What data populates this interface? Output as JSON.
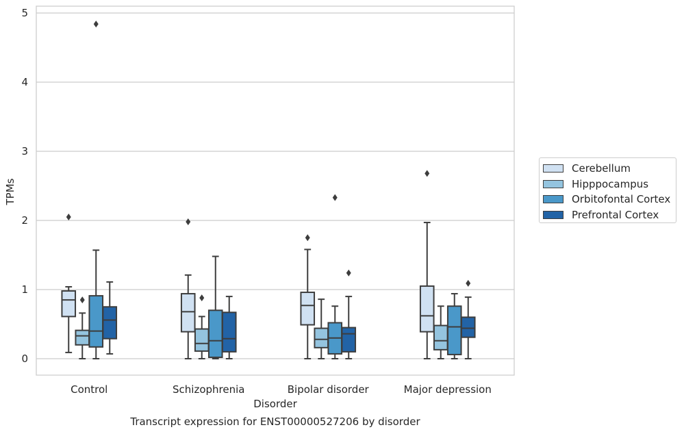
{
  "chart_data": {
    "type": "box",
    "title": "Transcript expression for ENST00000527206 by disorder",
    "xlabel": "Disorder",
    "ylabel": "TPMs",
    "ylim": [
      -0.23,
      5.1
    ],
    "yticks": [
      "0",
      "1",
      "2",
      "3",
      "4",
      "5"
    ],
    "grid": true,
    "legend_position": "right",
    "categories": [
      "Control",
      "Schizophrenia",
      "Bipolar disorder",
      "Major depression"
    ],
    "series": [
      {
        "name": "Cerebellum",
        "color": "#d0e1f2",
        "boxes": [
          {
            "whislo": 0.09,
            "q1": 0.61,
            "med": 0.85,
            "q3": 0.98,
            "whishi": 1.04,
            "fliers": [
              2.05
            ]
          },
          {
            "whislo": 0.0,
            "q1": 0.39,
            "med": 0.68,
            "q3": 0.94,
            "whishi": 1.21,
            "fliers": [
              1.98
            ]
          },
          {
            "whislo": 0.0,
            "q1": 0.49,
            "med": 0.77,
            "q3": 0.96,
            "whishi": 1.58,
            "fliers": [
              1.75
            ]
          },
          {
            "whislo": 0.0,
            "q1": 0.39,
            "med": 0.62,
            "q3": 1.05,
            "whishi": 1.97,
            "fliers": [
              2.68
            ]
          }
        ]
      },
      {
        "name": "Hipppocampus",
        "color": "#94c4df",
        "boxes": [
          {
            "whislo": 0.0,
            "q1": 0.2,
            "med": 0.33,
            "q3": 0.41,
            "whishi": 0.66,
            "fliers": [
              0.85
            ]
          },
          {
            "whislo": 0.0,
            "q1": 0.11,
            "med": 0.22,
            "q3": 0.43,
            "whishi": 0.61,
            "fliers": [
              0.88
            ]
          },
          {
            "whislo": 0.0,
            "q1": 0.16,
            "med": 0.28,
            "q3": 0.44,
            "whishi": 0.86,
            "fliers": []
          },
          {
            "whislo": 0.0,
            "q1": 0.13,
            "med": 0.26,
            "q3": 0.48,
            "whishi": 0.76,
            "fliers": []
          }
        ]
      },
      {
        "name": "Orbitofontal Cortex",
        "color": "#4a98c9",
        "boxes": [
          {
            "whislo": 0.0,
            "q1": 0.17,
            "med": 0.4,
            "q3": 0.91,
            "whishi": 1.57,
            "fliers": [
              4.84
            ]
          },
          {
            "whislo": 0.0,
            "q1": 0.02,
            "med": 0.26,
            "q3": 0.7,
            "whishi": 1.48,
            "fliers": []
          },
          {
            "whislo": 0.0,
            "q1": 0.07,
            "med": 0.3,
            "q3": 0.52,
            "whishi": 0.76,
            "fliers": [
              2.33
            ]
          },
          {
            "whislo": 0.0,
            "q1": 0.06,
            "med": 0.46,
            "q3": 0.76,
            "whishi": 0.94,
            "fliers": []
          }
        ]
      },
      {
        "name": "Prefrontal Cortex",
        "color": "#2263a6",
        "boxes": [
          {
            "whislo": 0.07,
            "q1": 0.29,
            "med": 0.56,
            "q3": 0.75,
            "whishi": 1.11,
            "fliers": []
          },
          {
            "whislo": 0.0,
            "q1": 0.1,
            "med": 0.29,
            "q3": 0.67,
            "whishi": 0.9,
            "fliers": []
          },
          {
            "whislo": 0.0,
            "q1": 0.1,
            "med": 0.36,
            "q3": 0.45,
            "whishi": 0.9,
            "fliers": [
              1.24
            ]
          },
          {
            "whislo": 0.0,
            "q1": 0.31,
            "med": 0.44,
            "q3": 0.6,
            "whishi": 0.89,
            "fliers": [
              1.09
            ]
          }
        ]
      }
    ]
  }
}
